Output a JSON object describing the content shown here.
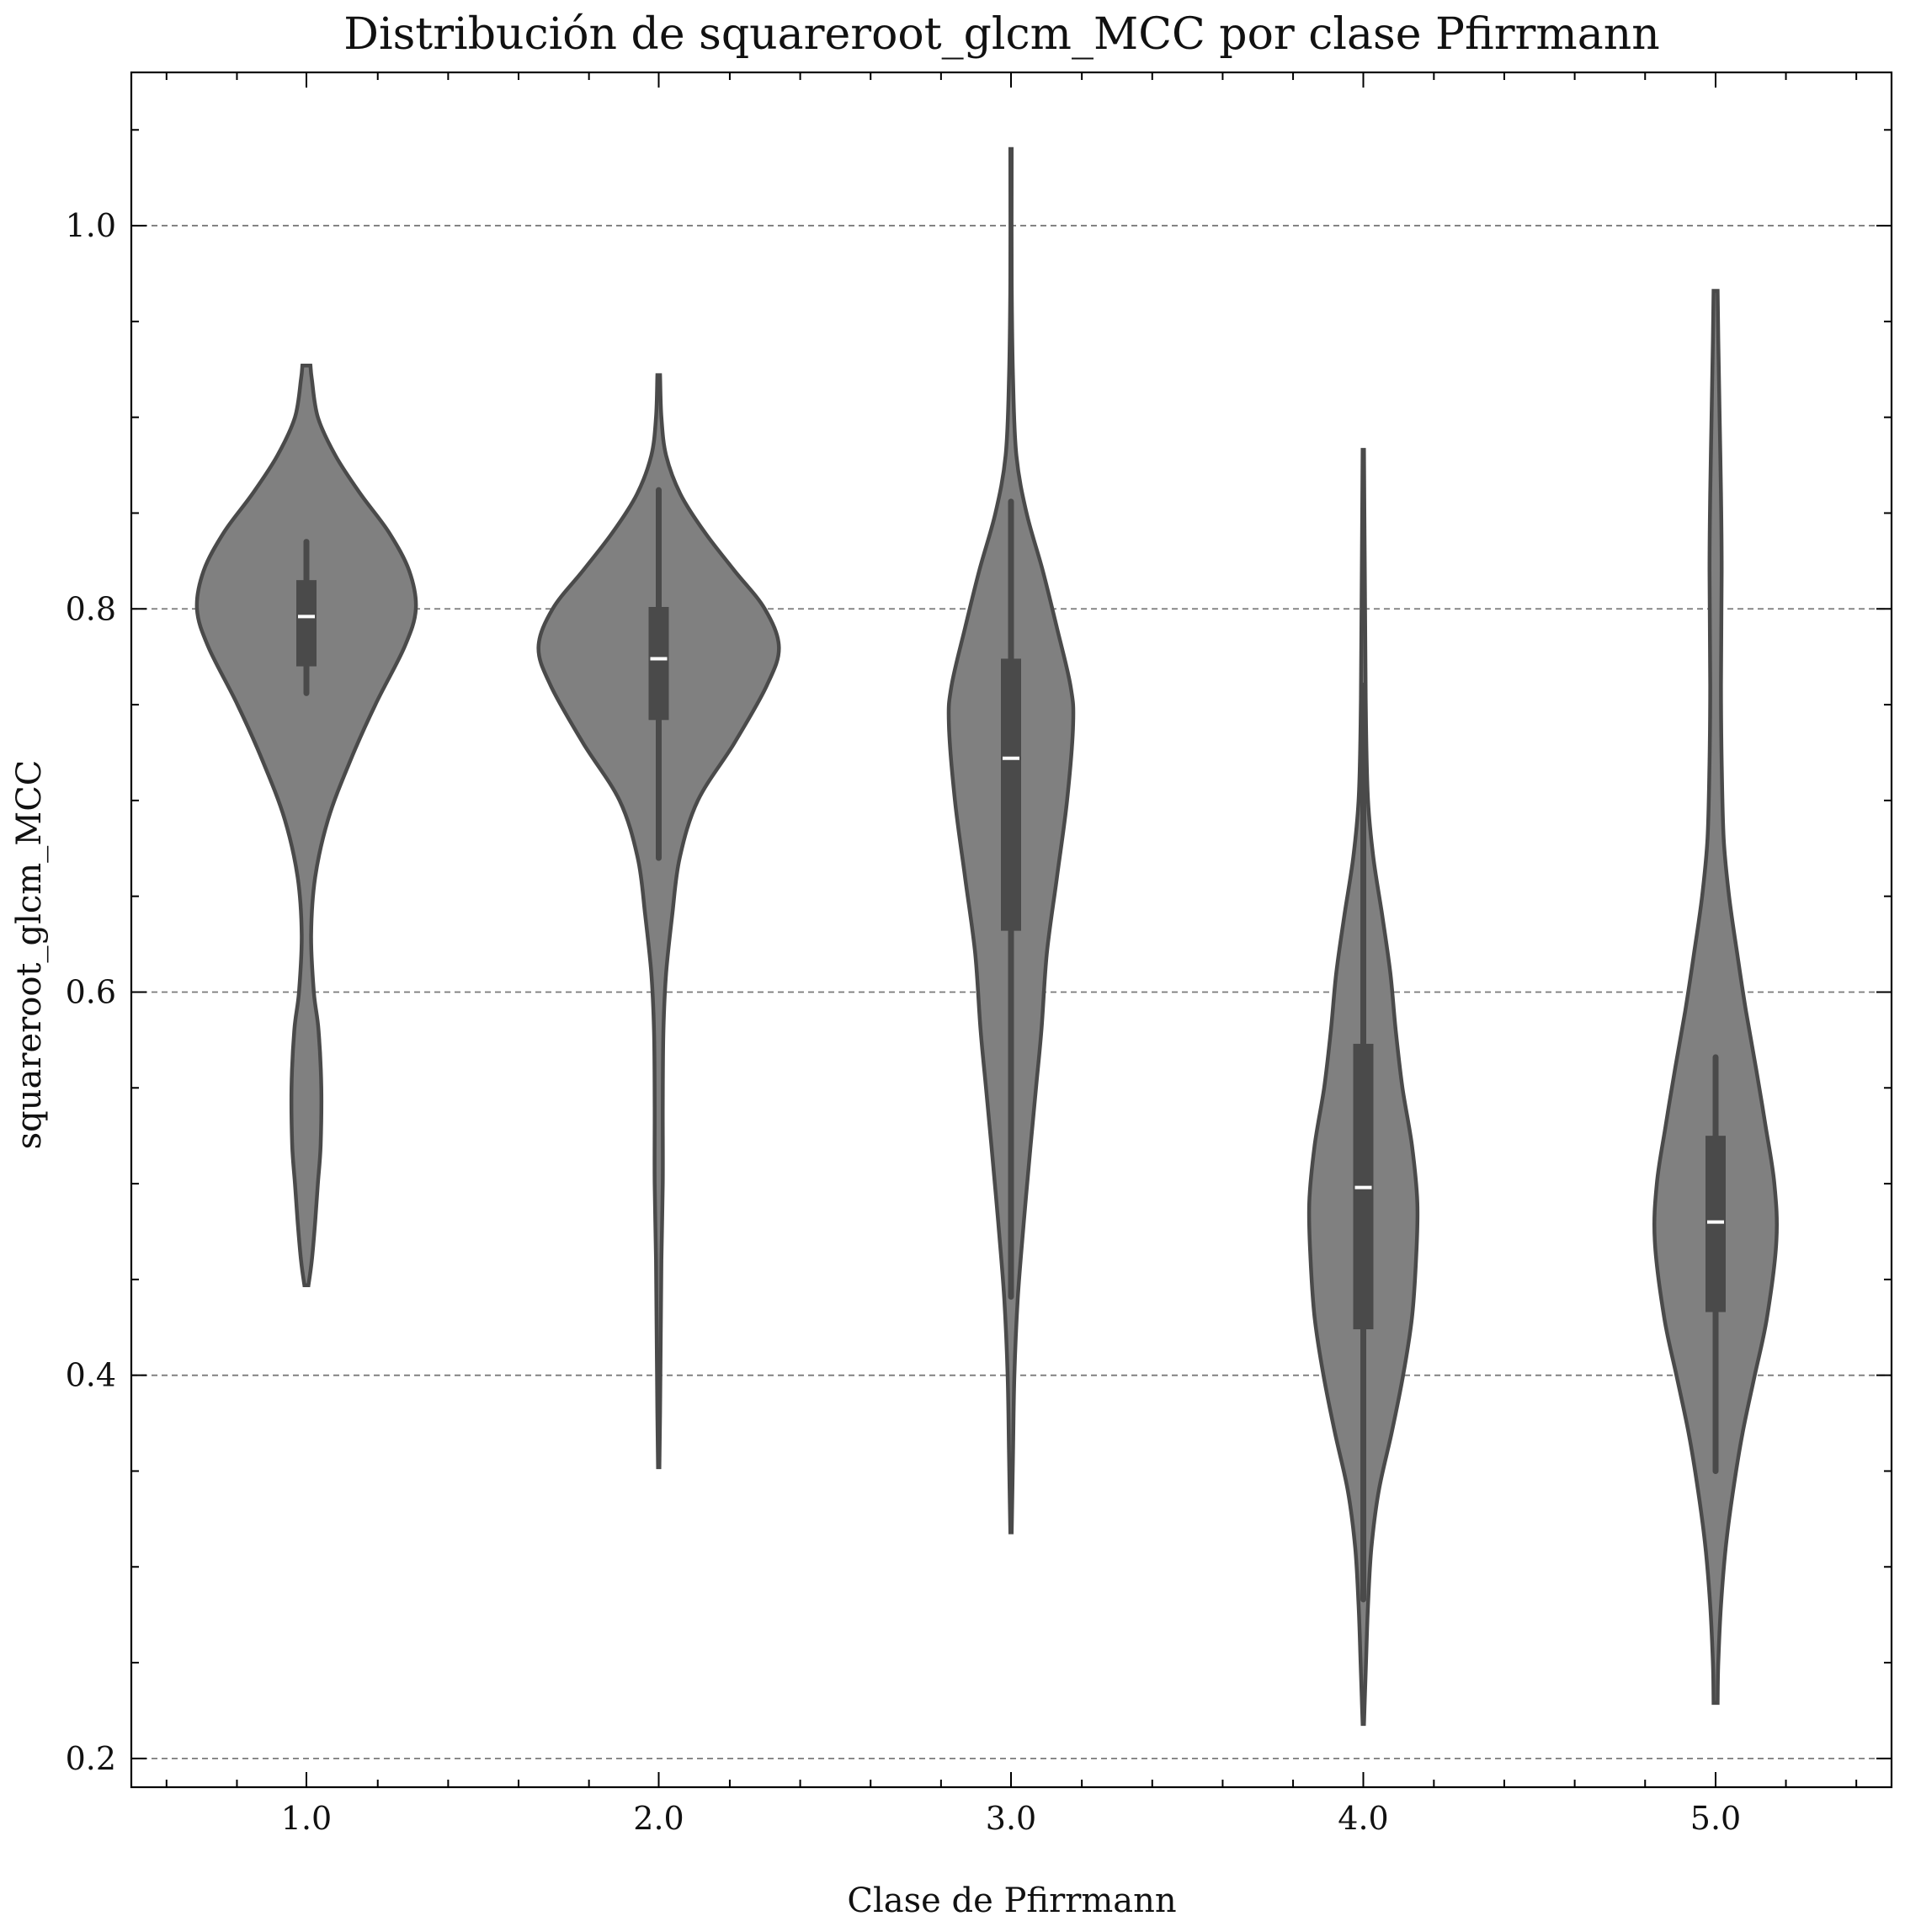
{
  "chart_data": {
    "type": "violin",
    "title": "Distribución de squareroot_glcm_MCC por clase Pfirrmann",
    "xlabel": "Clase de Pfirrmann",
    "ylabel": "squareroot_glcm_MCC",
    "ylim": [
      0.185,
      1.08
    ],
    "yticks": [
      "0.2",
      "0.4",
      "0.6",
      "0.8",
      "1.0"
    ],
    "categories": [
      "1.0",
      "2.0",
      "3.0",
      "4.0",
      "5.0"
    ],
    "grid": "horizontal dashed",
    "colors": {
      "violin_fill": "#808080",
      "violin_edge": "#4a4a4a",
      "box": "#4a4a4a",
      "median": "#ffffff",
      "grid": "#7a7a7a"
    },
    "series": [
      {
        "category": "1.0",
        "median": 0.796,
        "q1": 0.77,
        "q3": 0.815,
        "whisker_low": 0.756,
        "whisker_high": 0.835,
        "density": [
          [
            0.447,
            0.003
          ],
          [
            0.46,
            0.008
          ],
          [
            0.48,
            0.013
          ],
          [
            0.5,
            0.017
          ],
          [
            0.52,
            0.021
          ],
          [
            0.55,
            0.022
          ],
          [
            0.58,
            0.018
          ],
          [
            0.6,
            0.011
          ],
          [
            0.63,
            0.007
          ],
          [
            0.66,
            0.013
          ],
          [
            0.69,
            0.032
          ],
          [
            0.72,
            0.064
          ],
          [
            0.75,
            0.102
          ],
          [
            0.78,
            0.145
          ],
          [
            0.8,
            0.162
          ],
          [
            0.82,
            0.152
          ],
          [
            0.84,
            0.122
          ],
          [
            0.86,
            0.08
          ],
          [
            0.88,
            0.043
          ],
          [
            0.9,
            0.017
          ],
          [
            0.92,
            0.008
          ],
          [
            0.927,
            0.006
          ]
        ]
      },
      {
        "category": "2.0",
        "median": 0.774,
        "q1": 0.742,
        "q3": 0.801,
        "whisker_low": 0.67,
        "whisker_high": 0.862,
        "density": [
          [
            0.352,
            0.001
          ],
          [
            0.38,
            0.002
          ],
          [
            0.42,
            0.003
          ],
          [
            0.46,
            0.004
          ],
          [
            0.5,
            0.006
          ],
          [
            0.54,
            0.006
          ],
          [
            0.58,
            0.007
          ],
          [
            0.61,
            0.011
          ],
          [
            0.64,
            0.02
          ],
          [
            0.67,
            0.031
          ],
          [
            0.7,
            0.058
          ],
          [
            0.73,
            0.112
          ],
          [
            0.76,
            0.16
          ],
          [
            0.78,
            0.178
          ],
          [
            0.8,
            0.157
          ],
          [
            0.82,
            0.112
          ],
          [
            0.84,
            0.068
          ],
          [
            0.86,
            0.032
          ],
          [
            0.88,
            0.011
          ],
          [
            0.9,
            0.004
          ],
          [
            0.922,
            0.002
          ]
        ]
      },
      {
        "category": "3.0",
        "median": 0.722,
        "q1": 0.632,
        "q3": 0.774,
        "whisker_low": 0.441,
        "whisker_high": 0.856,
        "density": [
          [
            0.318,
            0.001
          ],
          [
            0.36,
            0.003
          ],
          [
            0.4,
            0.005
          ],
          [
            0.44,
            0.01
          ],
          [
            0.48,
            0.019
          ],
          [
            0.52,
            0.029
          ],
          [
            0.55,
            0.037
          ],
          [
            0.58,
            0.045
          ],
          [
            0.62,
            0.053
          ],
          [
            0.66,
            0.068
          ],
          [
            0.7,
            0.083
          ],
          [
            0.74,
            0.092
          ],
          [
            0.76,
            0.088
          ],
          [
            0.79,
            0.068
          ],
          [
            0.82,
            0.047
          ],
          [
            0.85,
            0.023
          ],
          [
            0.88,
            0.008
          ],
          [
            0.92,
            0.003
          ],
          [
            0.97,
            0.001
          ],
          [
            1.04,
            0.001
          ]
        ]
      },
      {
        "category": "4.0",
        "median": 0.498,
        "q1": 0.424,
        "q3": 0.573,
        "whisker_low": 0.283,
        "whisker_high": 0.76,
        "density": [
          [
            0.218,
            0.001
          ],
          [
            0.25,
            0.004
          ],
          [
            0.28,
            0.007
          ],
          [
            0.31,
            0.012
          ],
          [
            0.34,
            0.023
          ],
          [
            0.37,
            0.042
          ],
          [
            0.4,
            0.059
          ],
          [
            0.43,
            0.072
          ],
          [
            0.46,
            0.078
          ],
          [
            0.49,
            0.08
          ],
          [
            0.52,
            0.072
          ],
          [
            0.55,
            0.058
          ],
          [
            0.58,
            0.048
          ],
          [
            0.61,
            0.04
          ],
          [
            0.64,
            0.028
          ],
          [
            0.67,
            0.015
          ],
          [
            0.7,
            0.007
          ],
          [
            0.74,
            0.004
          ],
          [
            0.78,
            0.003
          ],
          [
            0.83,
            0.002
          ],
          [
            0.883,
            0.001
          ]
        ]
      },
      {
        "category": "5.0",
        "median": 0.48,
        "q1": 0.433,
        "q3": 0.525,
        "whisker_low": 0.35,
        "whisker_high": 0.566,
        "density": [
          [
            0.229,
            0.003
          ],
          [
            0.25,
            0.004
          ],
          [
            0.28,
            0.008
          ],
          [
            0.31,
            0.015
          ],
          [
            0.34,
            0.026
          ],
          [
            0.37,
            0.04
          ],
          [
            0.4,
            0.058
          ],
          [
            0.43,
            0.076
          ],
          [
            0.47,
            0.09
          ],
          [
            0.5,
            0.087
          ],
          [
            0.53,
            0.074
          ],
          [
            0.56,
            0.06
          ],
          [
            0.59,
            0.045
          ],
          [
            0.62,
            0.032
          ],
          [
            0.65,
            0.02
          ],
          [
            0.68,
            0.012
          ],
          [
            0.72,
            0.009
          ],
          [
            0.76,
            0.008
          ],
          [
            0.82,
            0.009
          ],
          [
            0.86,
            0.008
          ],
          [
            0.9,
            0.006
          ],
          [
            0.94,
            0.004
          ],
          [
            0.966,
            0.003
          ]
        ]
      }
    ]
  }
}
